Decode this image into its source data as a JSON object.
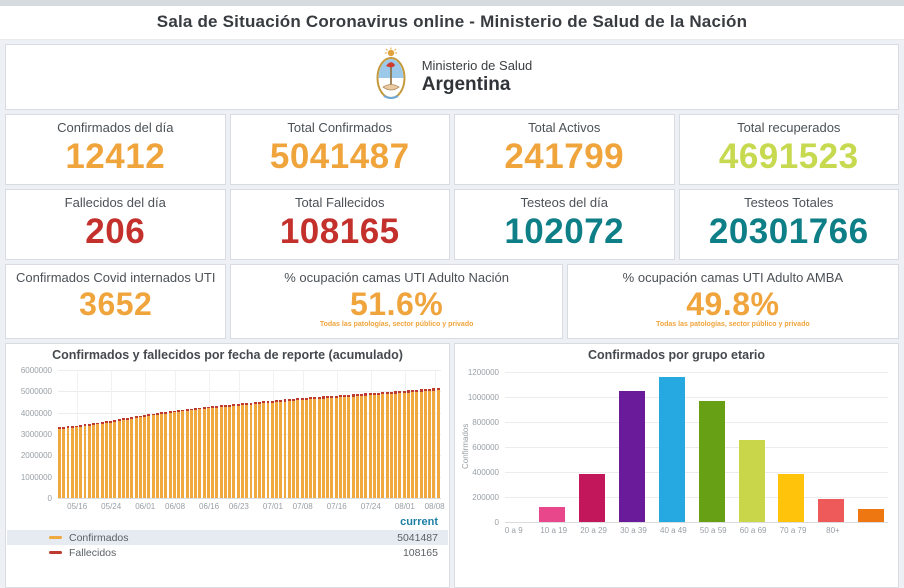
{
  "page": {
    "title": "Sala de Situación Coronavirus online - Ministerio de Salud de la Nación"
  },
  "logo": {
    "line1": "Ministerio de Salud",
    "line2": "Argentina"
  },
  "colors": {
    "orange": "#F0A43C",
    "lime": "#C6D94F",
    "red": "#C4312C",
    "teal": "#0E7F87",
    "legend_header": "#1C7FA4",
    "bar_confirmados": "#EFA93F",
    "bar_fallecidos": "#BE3A2E"
  },
  "stats": {
    "cards": [
      {
        "label": "Confirmados del día",
        "value": "12412",
        "color": "#F0A43C"
      },
      {
        "label": "Total Confirmados",
        "value": "5041487",
        "color": "#F0A43C"
      },
      {
        "label": "Total Activos",
        "value": "241799",
        "color": "#F0A43C"
      },
      {
        "label": "Total recuperados",
        "value": "4691523",
        "color": "#C6D94F"
      },
      {
        "label": "Fallecidos del día",
        "value": "206",
        "color": "#C4312C"
      },
      {
        "label": "Total Fallecidos",
        "value": "108165",
        "color": "#C4312C"
      },
      {
        "label": "Testeos del día",
        "value": "102072",
        "color": "#0E7F87"
      },
      {
        "label": "Testeos Totales",
        "value": "20301766",
        "color": "#0E7F87"
      },
      {
        "label": "Confirmados Covid internados UTI",
        "value": "3652",
        "color": "#F0A43C"
      },
      {
        "label": "% ocupación camas UTI Adulto Nación",
        "value": "51.6%",
        "color": "#F0A43C",
        "note": "Todas las patologías, sector público y privado"
      },
      {
        "label": "% ocupación camas UTI Adulto AMBA",
        "value": "49.8%",
        "color": "#F0A43C",
        "note": "Todas las patologías, sector público y privado"
      }
    ]
  },
  "chart_data": [
    {
      "type": "bar",
      "stacked": true,
      "title": "Confirmados y fallecidos por fecha de reporte (acumulado)",
      "xlabel": "",
      "ylabel": "",
      "ylim": [
        0,
        6000000
      ],
      "y_tick_labels": [
        "0",
        "1000000",
        "2000000",
        "3000000",
        "4000000",
        "5000000",
        "6000000"
      ],
      "grid": true,
      "n_bars": 90,
      "x_ticks": [
        {
          "day": 4,
          "label": "05/16"
        },
        {
          "day": 12,
          "label": "05/24"
        },
        {
          "day": 20,
          "label": "06/01"
        },
        {
          "day": 27,
          "label": "06/08"
        },
        {
          "day": 35,
          "label": "06/16"
        },
        {
          "day": 42,
          "label": "06/23"
        },
        {
          "day": 50,
          "label": "07/01"
        },
        {
          "day": 57,
          "label": "07/08"
        },
        {
          "day": 65,
          "label": "07/16"
        },
        {
          "day": 73,
          "label": "07/24"
        },
        {
          "day": 81,
          "label": "08/01"
        },
        {
          "day": 88,
          "label": "08/08"
        }
      ],
      "legend_header": "current",
      "series": [
        {
          "name": "Confirmados",
          "color": "#EFA93F",
          "current": "5041487",
          "anchors": [
            {
              "day": 0,
              "value": 3242103
            },
            {
              "day": 4,
              "value": 3307285
            },
            {
              "day": 12,
              "value": 3539484
            },
            {
              "day": 20,
              "value": 3817139
            },
            {
              "day": 27,
              "value": 4008771
            },
            {
              "day": 35,
              "value": 4198620
            },
            {
              "day": 42,
              "value": 4326101
            },
            {
              "day": 50,
              "value": 4470374
            },
            {
              "day": 57,
              "value": 4593763
            },
            {
              "day": 65,
              "value": 4702657
            },
            {
              "day": 73,
              "value": 4812351
            },
            {
              "day": 81,
              "value": 4919408
            },
            {
              "day": 88,
              "value": 5029075
            },
            {
              "day": 89,
              "value": 5041487
            }
          ]
        },
        {
          "name": "Fallecidos",
          "color": "#BE3A2E",
          "current": "108165",
          "anchors": [
            {
              "day": 0,
              "value": 68311
            },
            {
              "day": 12,
              "value": 75588
            },
            {
              "day": 27,
              "value": 82667
            },
            {
              "day": 42,
              "value": 90281
            },
            {
              "day": 57,
              "value": 97904
            },
            {
              "day": 73,
              "value": 103584
            },
            {
              "day": 89,
              "value": 108165
            }
          ]
        }
      ]
    },
    {
      "type": "bar",
      "title": "Confirmados por grupo etario",
      "xlabel": "",
      "ylabel": "Confirmados",
      "ylim": [
        0,
        1200000
      ],
      "y_tick_labels": [
        "0",
        "200000",
        "400000",
        "600000",
        "800000",
        "1000000",
        "1200000"
      ],
      "grid": true,
      "categories": [
        "0 a 9",
        "10 a 19",
        "20 a 29",
        "30 a 39",
        "40 a 49",
        "50 a 59",
        "60 a 69",
        "70 a 79",
        "80+"
      ],
      "values": [
        120000,
        385000,
        1045000,
        1160000,
        970000,
        660000,
        385000,
        185000,
        105000
      ],
      "colors": [
        "#E8478B",
        "#C2185B",
        "#6A1B9A",
        "#26A9E0",
        "#67A015",
        "#C9D64A",
        "#FFC30B",
        "#EE5A5A",
        "#EE7711"
      ]
    }
  ]
}
